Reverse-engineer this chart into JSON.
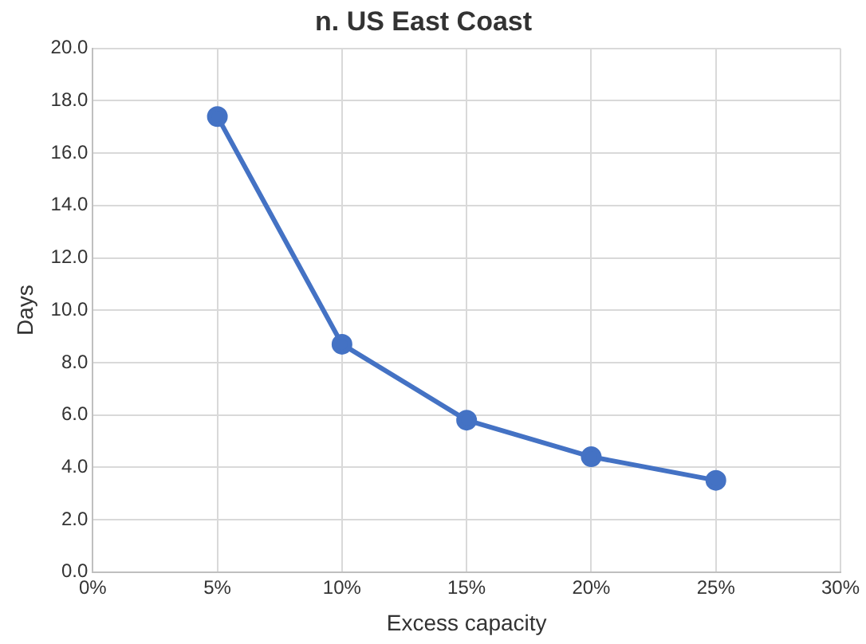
{
  "chart_data": {
    "type": "line",
    "title": "n. US East Coast",
    "xlabel": "Excess capacity",
    "ylabel": "Days",
    "x": [
      5,
      10,
      15,
      20,
      25
    ],
    "series": [
      {
        "color": "#4472c4",
        "values": [
          17.4,
          8.7,
          5.8,
          4.4,
          3.5
        ]
      }
    ],
    "xlim": [
      0,
      30
    ],
    "xticks": [
      {
        "value": 0,
        "label": "0%"
      },
      {
        "value": 5,
        "label": "5%"
      },
      {
        "value": 10,
        "label": "10%"
      },
      {
        "value": 15,
        "label": "15%"
      },
      {
        "value": 20,
        "label": "20%"
      },
      {
        "value": 25,
        "label": "25%"
      },
      {
        "value": 30,
        "label": "30%"
      }
    ],
    "ylim": [
      0,
      20
    ],
    "yticks": [
      {
        "value": 0,
        "label": "0.0"
      },
      {
        "value": 2,
        "label": "2.0"
      },
      {
        "value": 4,
        "label": "4.0"
      },
      {
        "value": 6,
        "label": "6.0"
      },
      {
        "value": 8,
        "label": "8.0"
      },
      {
        "value": 10,
        "label": "10.0"
      },
      {
        "value": 12,
        "label": "12.0"
      },
      {
        "value": 14,
        "label": "14.0"
      },
      {
        "value": 16,
        "label": "16.0"
      },
      {
        "value": 18,
        "label": "18.0"
      },
      {
        "value": 20,
        "label": "20.0"
      }
    ],
    "grid": true,
    "marker": "circle",
    "legend": false
  }
}
